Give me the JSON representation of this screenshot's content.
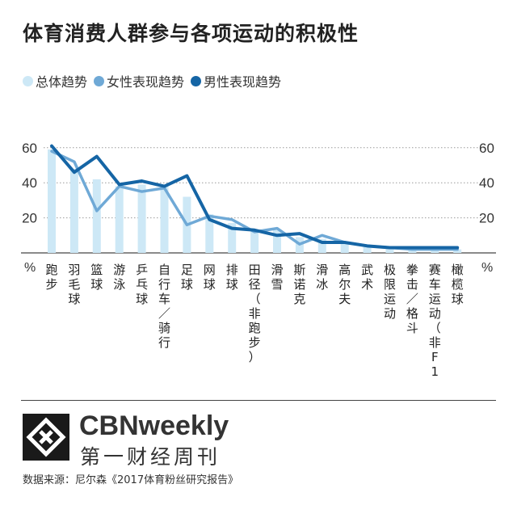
{
  "title": "体育消费人群参与各项运动的积极性",
  "legend": [
    {
      "label": "总体趋势",
      "color": "#cde8f6"
    },
    {
      "label": "女性表现趋势",
      "color": "#6fa9d6"
    },
    {
      "label": "男性表现趋势",
      "color": "#1565a5"
    }
  ],
  "chart_data": {
    "type": "bar",
    "title": "体育消费人群参与各项运动的积极性",
    "categories": [
      "跑步",
      "羽毛球",
      "篮球",
      "游泳",
      "乒乓球",
      "自行车／骑行",
      "足球",
      "网球",
      "排球",
      "田径（非跑步）",
      "滑雪",
      "斯诺克",
      "滑冰",
      "高尔夫",
      "武术",
      "极限运动",
      "拳击／格斗",
      "赛车运动（非F1）",
      "橄榄球"
    ],
    "y_unit": "%",
    "yticks": [
      20,
      40,
      60
    ],
    "ylim": [
      0,
      65
    ],
    "grid": true,
    "series": [
      {
        "name": "总体趋势",
        "type": "bar",
        "color": "#cde8f6",
        "values": [
          59,
          48,
          42,
          38,
          39,
          38,
          32,
          22,
          17,
          13,
          13,
          9,
          8,
          6,
          4,
          3,
          2,
          2,
          2
        ]
      },
      {
        "name": "女性表现趋势",
        "type": "line",
        "color": "#6fa9d6",
        "values": [
          58,
          52,
          24,
          38,
          35,
          37,
          16,
          21,
          19,
          12,
          14,
          5,
          10,
          6,
          4,
          3,
          2,
          2,
          2
        ]
      },
      {
        "name": "男性表现趋势",
        "type": "line",
        "color": "#1565a5",
        "values": [
          61,
          46,
          55,
          39,
          41,
          38,
          44,
          19,
          14,
          13,
          10,
          11,
          6,
          6,
          4,
          3,
          3,
          3,
          3
        ]
      }
    ]
  },
  "footer": {
    "brand": "CBNweekly",
    "brand_cn": "第一财经周刊",
    "source": "数据来源：尼尔森《2017体育粉丝研究报告》"
  }
}
